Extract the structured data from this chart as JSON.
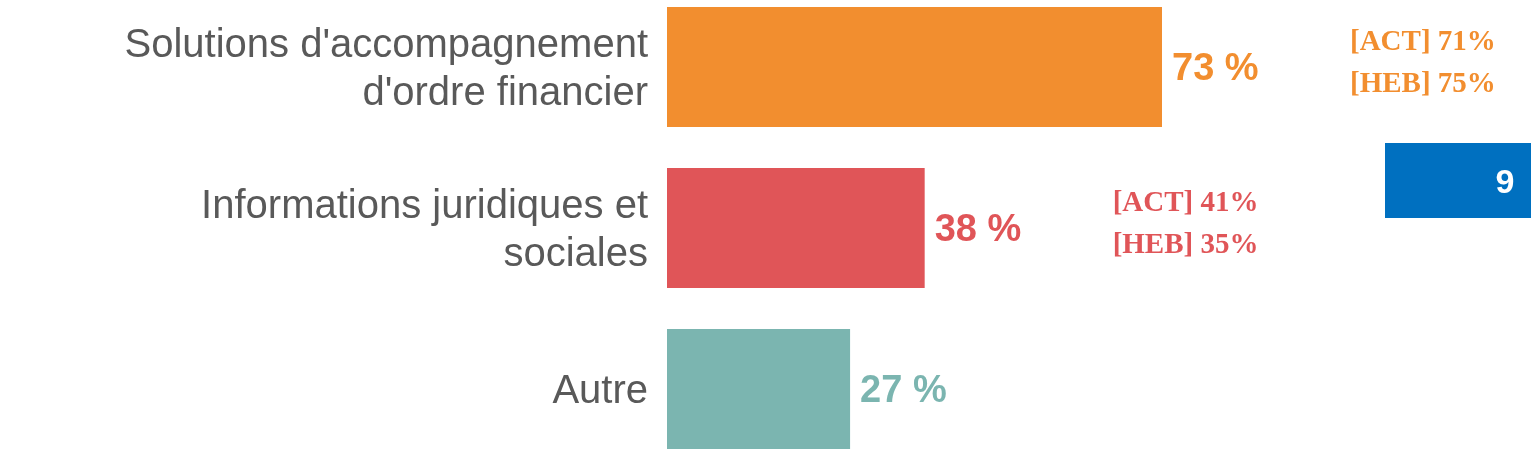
{
  "chart_data": {
    "type": "bar",
    "orientation": "horizontal",
    "categories": [
      "Solutions d'accompagnement d'ordre financier",
      "Informations juridiques et sociales",
      "Autre"
    ],
    "values": [
      73,
      38,
      27
    ],
    "colors": [
      "#f28e2f",
      "#e05558",
      "#7bb5b0"
    ],
    "value_labels": [
      "73 %",
      "38 %",
      "27 %"
    ],
    "tick_labels": "y",
    "annotations": [
      "[ACT] 71%",
      "[HEB] 75%",
      "[ACT] 41%",
      "[HEB] 35%",
      "9"
    ]
  }
}
